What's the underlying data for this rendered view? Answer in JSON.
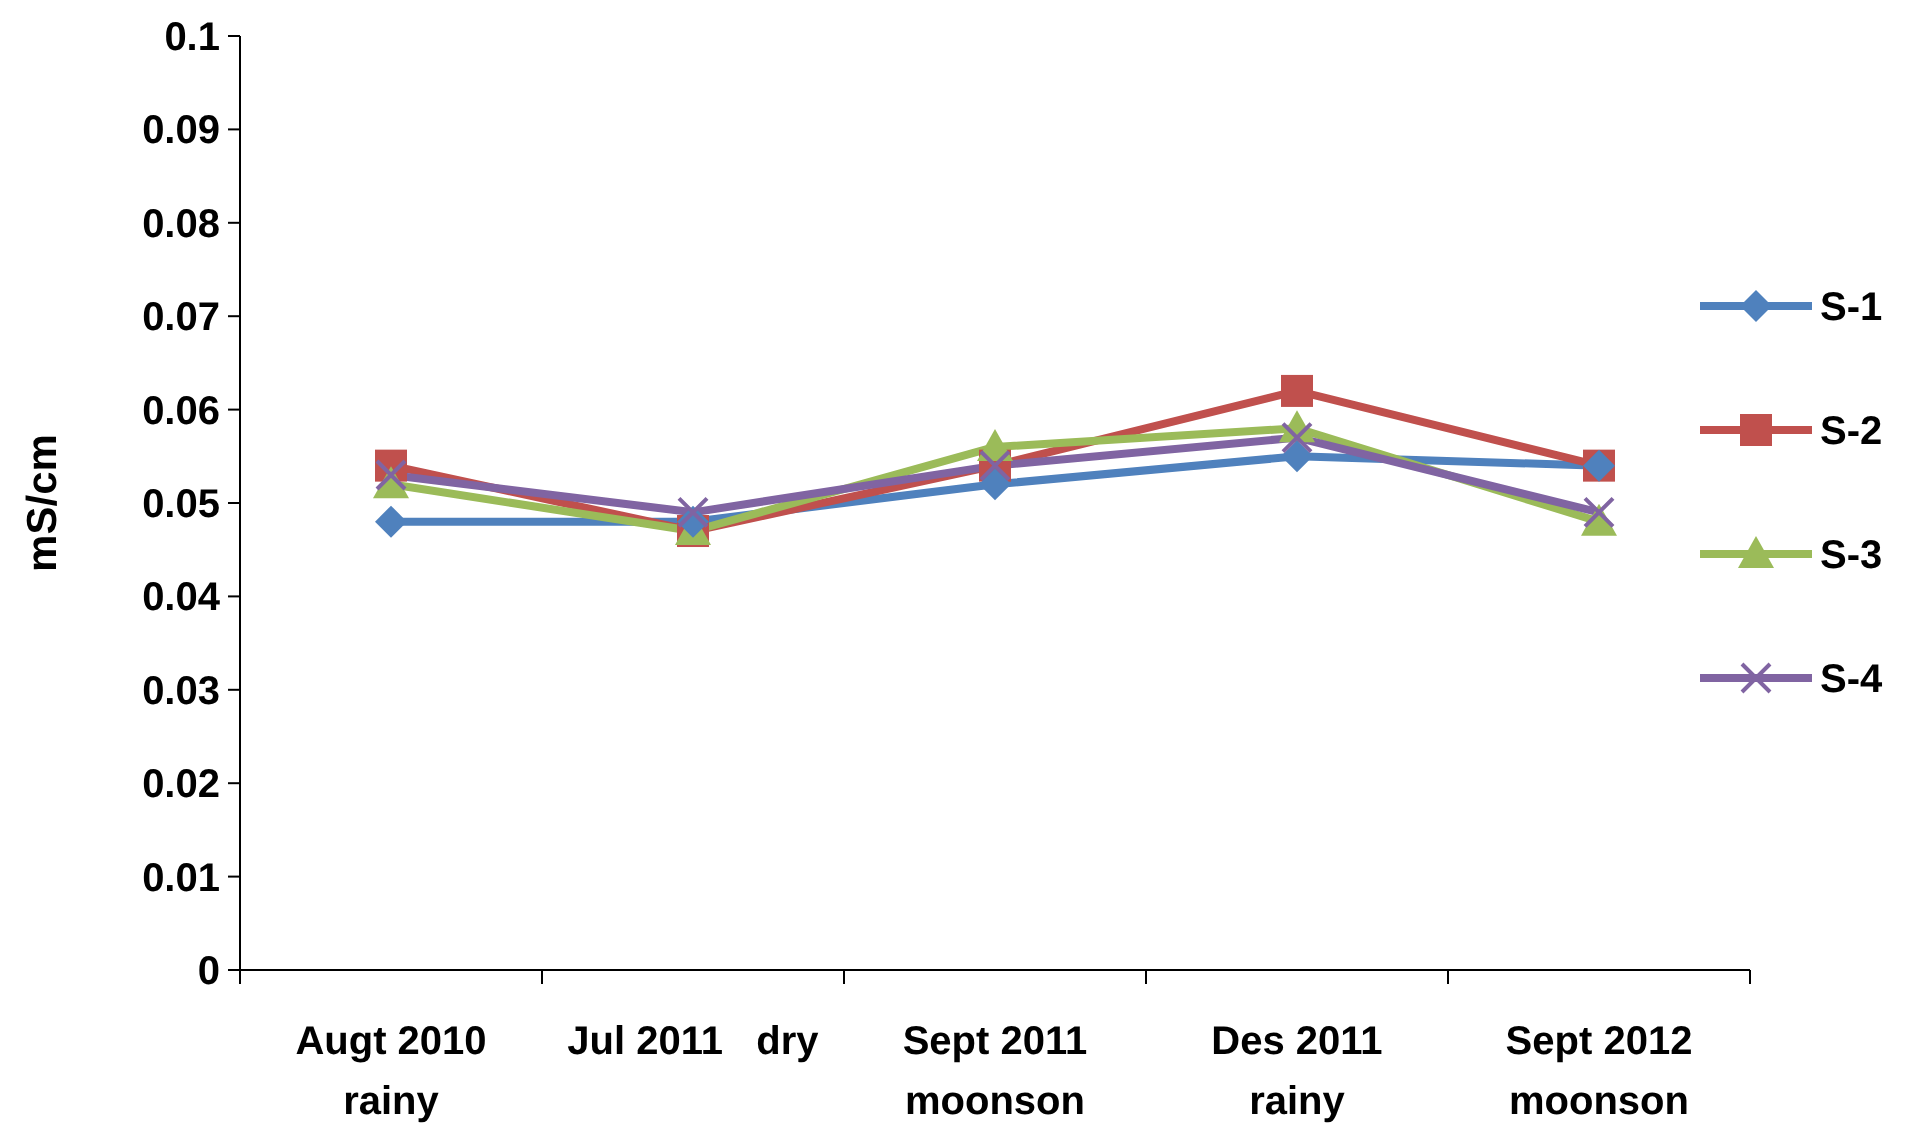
{
  "chart_data": {
    "type": "line",
    "ylabel": "mS/cm",
    "categories": [
      "Augt 2010\nrainy",
      "Jul 2011   dry",
      "Sept 2011\nmoonson",
      "Des 2011\nrainy",
      "Sept 2012\nmoonson"
    ],
    "ylim": [
      0,
      0.1
    ],
    "yticks": [
      0,
      0.01,
      0.02,
      0.03,
      0.04,
      0.05,
      0.06,
      0.07,
      0.08,
      0.09,
      0.1
    ],
    "grid": false,
    "legend": "right",
    "series": [
      {
        "name": "S-1",
        "color": "#4f81bd",
        "marker": "diamond",
        "values": [
          0.048,
          0.048,
          0.052,
          0.055,
          0.054
        ]
      },
      {
        "name": "S-2",
        "color": "#c0504d",
        "marker": "square",
        "values": [
          0.054,
          0.047,
          0.054,
          0.062,
          0.054
        ]
      },
      {
        "name": "S-3",
        "color": "#9bbb59",
        "marker": "triangle",
        "values": [
          0.052,
          0.047,
          0.056,
          0.058,
          0.048
        ]
      },
      {
        "name": "S-4",
        "color": "#8064a2",
        "marker": "cross",
        "values": [
          0.053,
          0.049,
          0.054,
          0.057,
          0.049
        ]
      }
    ]
  }
}
